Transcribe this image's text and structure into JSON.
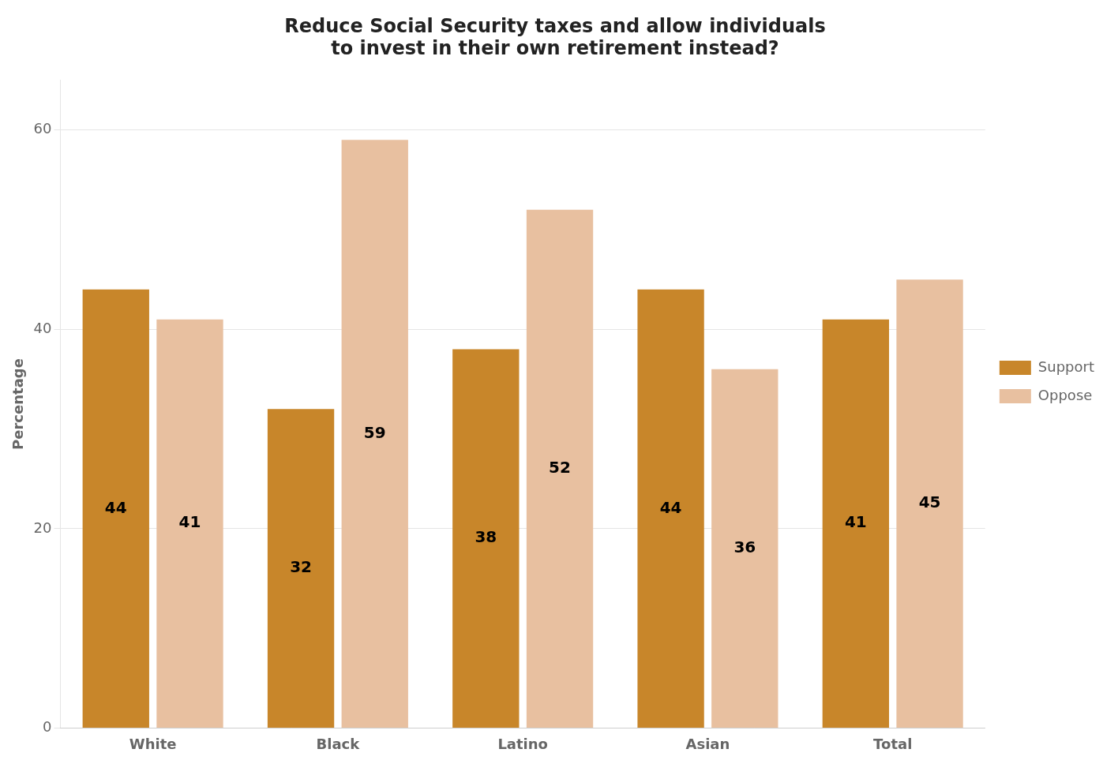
{
  "chart_data": {
    "type": "bar",
    "title": "Reduce Social Security taxes and allow individuals\nto invest in their own retirement instead?",
    "categories": [
      "White",
      "Black",
      "Latino",
      "Asian",
      "Total"
    ],
    "series": [
      {
        "name": "Support",
        "color": "#C8862A",
        "values": [
          44,
          32,
          38,
          44,
          41
        ]
      },
      {
        "name": "Oppose",
        "color": "#E8C0A0",
        "values": [
          41,
          59,
          52,
          36,
          45
        ]
      }
    ],
    "ylabel": "Percentage",
    "ylim": [
      0,
      65
    ],
    "yticks": [
      0,
      20,
      40,
      60
    ],
    "grid": true,
    "legend": "right",
    "data_labels": true
  }
}
